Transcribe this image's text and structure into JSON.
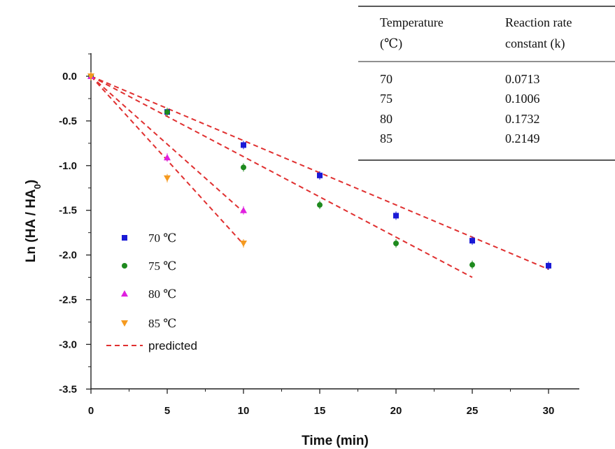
{
  "chart_data": {
    "type": "scatter",
    "xlabel": "Time (min)",
    "ylabel_main": "Ln (HA / HA",
    "ylabel_sub": "0",
    "ylabel_close": ")",
    "xlim": [
      0,
      32
    ],
    "ylim": [
      -3.5,
      0.25
    ],
    "xticks": [
      0,
      5,
      10,
      15,
      20,
      25,
      30
    ],
    "xtick_labels": [
      "0",
      "5",
      "10",
      "15",
      "20",
      "25",
      "30"
    ],
    "yticks": [
      0.0,
      -0.5,
      -1.0,
      -1.5,
      -2.0,
      -2.5,
      -3.0,
      -3.5
    ],
    "ytick_labels": [
      "0.0",
      "-0.5",
      "-1.0",
      "-1.5",
      "-2.0",
      "-2.5",
      "-3.0",
      "-3.5"
    ],
    "grid": false,
    "legend_position": "left",
    "series": [
      {
        "name": "70 ℃",
        "marker": "square",
        "color": "#1a1ad6",
        "x": [
          0,
          5,
          10,
          15,
          20,
          25,
          30
        ],
        "y": [
          0.0,
          -0.4,
          -0.77,
          -1.11,
          -1.56,
          -1.84,
          -2.12
        ]
      },
      {
        "name": "75 ℃",
        "marker": "circle",
        "color": "#1e8a1e",
        "x": [
          0,
          5,
          10,
          15,
          20,
          25
        ],
        "y": [
          0.0,
          -0.4,
          -1.02,
          -1.44,
          -1.87,
          -2.11
        ]
      },
      {
        "name": "80 ℃",
        "marker": "triangle-up",
        "color": "#e020e0",
        "x": [
          0,
          5,
          10
        ],
        "y": [
          0.0,
          -0.91,
          -1.5
        ]
      },
      {
        "name": "85 ℃",
        "marker": "triangle-down",
        "color": "#f59a20",
        "x": [
          0,
          5,
          10
        ],
        "y": [
          0.0,
          -1.14,
          -1.87
        ]
      }
    ],
    "predicted": {
      "name": "predicted",
      "color": "#e03030",
      "lines": [
        {
          "x": [
            0,
            30
          ],
          "y": [
            0.0,
            -2.16
          ]
        },
        {
          "x": [
            0,
            25
          ],
          "y": [
            0.0,
            -2.25
          ]
        },
        {
          "x": [
            0,
            10
          ],
          "y": [
            0.0,
            -1.52
          ]
        },
        {
          "x": [
            0,
            10
          ],
          "y": [
            0.0,
            -1.88
          ]
        }
      ]
    },
    "table": {
      "headers": [
        [
          "Temperature",
          "(℃)"
        ],
        [
          "Reaction rate",
          "constant (k)"
        ]
      ],
      "rows": [
        [
          "70",
          "0.0713"
        ],
        [
          "75",
          "0.1006"
        ],
        [
          "80",
          "0.1732"
        ],
        [
          "85",
          "0.2149"
        ]
      ]
    }
  }
}
